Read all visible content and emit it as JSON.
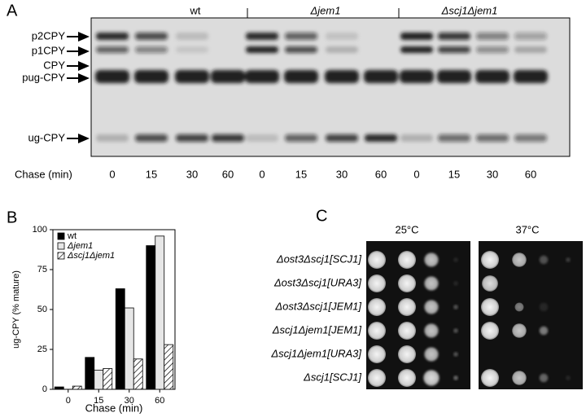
{
  "panel_a": {
    "label": "A",
    "groups": [
      "wt",
      "Δjem1",
      "Δscj1Δjem1"
    ],
    "bands": [
      "p2CPY",
      "p1CPY",
      "CPY",
      "pug-CPY",
      "ug-CPY"
    ],
    "axis_label": "Chase (min)",
    "lanes": [
      "0",
      "15",
      "30",
      "60",
      "0",
      "15",
      "30",
      "60",
      "0",
      "15",
      "30",
      "60"
    ]
  },
  "chart_data": {
    "type": "bar",
    "label": "B",
    "y_label": "ug-CPY (% mature)",
    "x_label": "Chase (min)",
    "categories": [
      "0",
      "15",
      "30",
      "60"
    ],
    "series": [
      {
        "name": "wt",
        "color": "#000000",
        "values": [
          1.5,
          20,
          63,
          90
        ]
      },
      {
        "name": "Δjem1",
        "color": "#e6e6e6",
        "values": [
          0,
          12,
          51,
          96
        ]
      },
      {
        "name": "Δscj1Δjem1",
        "color": "#ffffff",
        "hatch": true,
        "values": [
          2,
          13,
          19,
          28
        ]
      }
    ],
    "ylim": [
      0,
      100
    ],
    "yticks": [
      0,
      25,
      50,
      75,
      100
    ],
    "legend": "upper left"
  },
  "panel_c": {
    "label": "C",
    "temperatures": [
      "25°C",
      "37°C"
    ],
    "strains": [
      "Δost3Δscj1[SCJ1]",
      "Δost3Δscj1[URA3]",
      "Δost3Δscj1[JEM1]",
      "Δscj1Δjem1[JEM1]",
      "Δscj1Δjem1[URA3]",
      "Δscj1[SCJ1]"
    ]
  }
}
